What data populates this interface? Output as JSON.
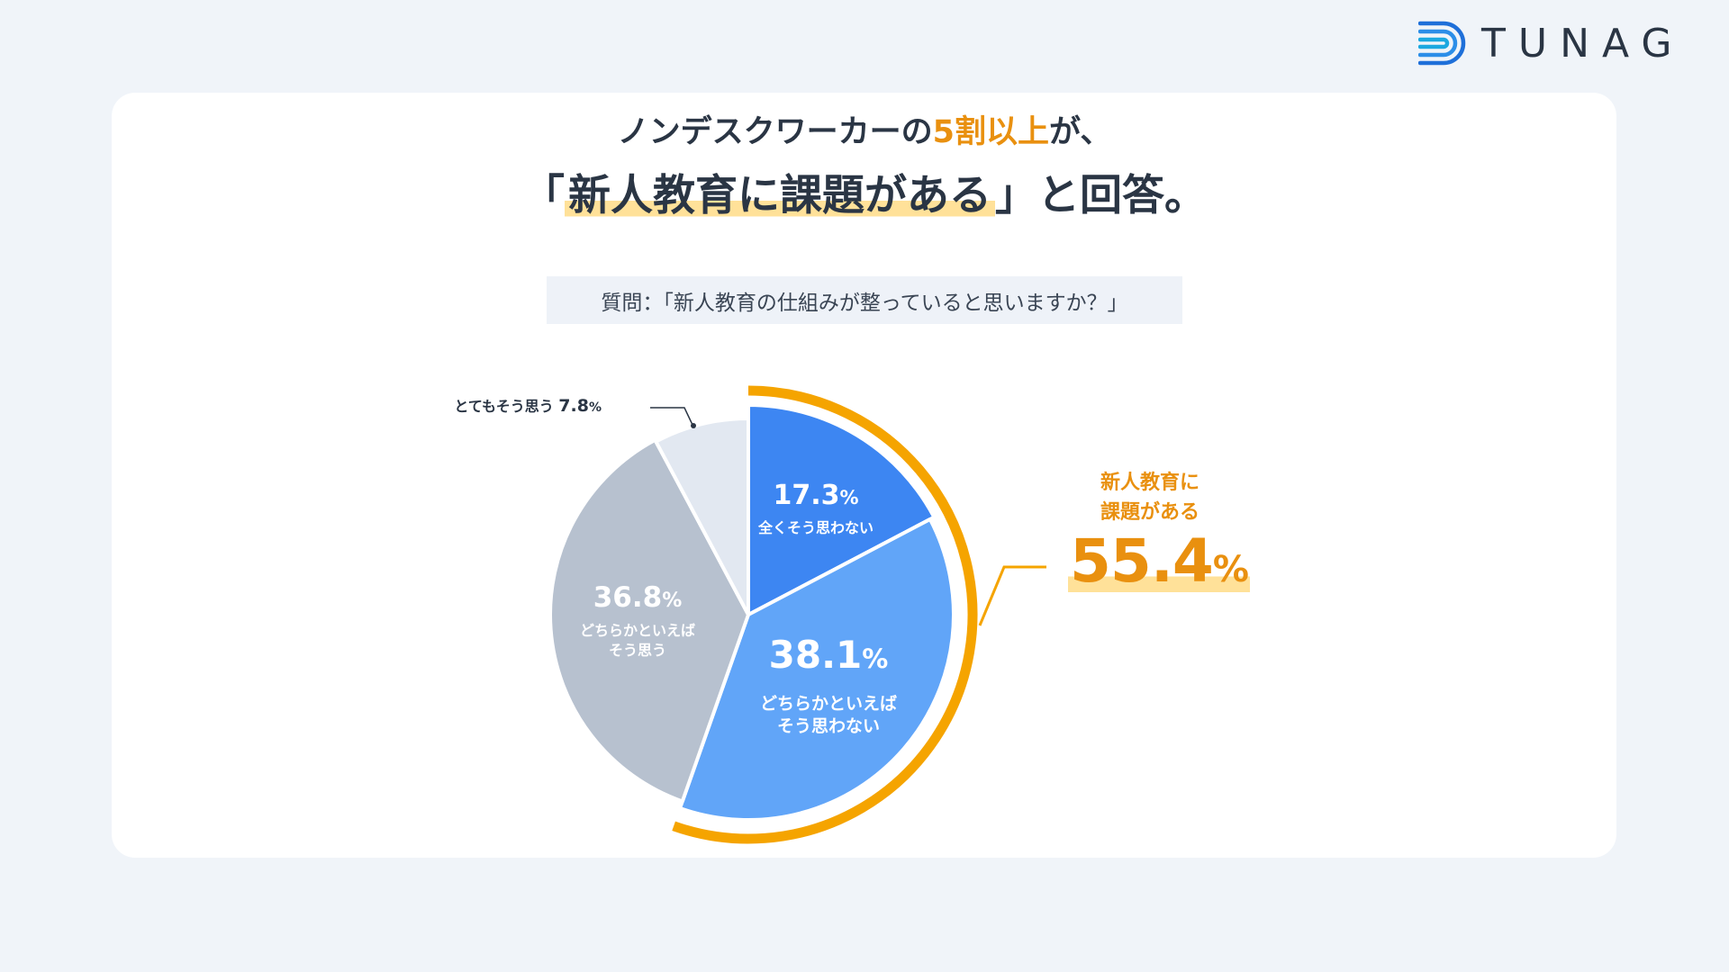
{
  "brand": {
    "name": "TUNAG"
  },
  "headline": {
    "line1_prefix": "ノンデスクワーカーの",
    "line1_highlight": "5割以上",
    "line1_suffix": "が、",
    "line2_open": "「",
    "line2_marked": "新人教育に課題がある",
    "line2_rest": "」と回答。"
  },
  "question": "質問：「新人教育の仕組みが整っていると思いますか？」",
  "callout": {
    "label_line1": "新人教育に",
    "label_line2": "課題がある",
    "value": "55.4",
    "unit": "%"
  },
  "colors": {
    "orange": "#f5a400",
    "blue_dark": "#3d86f2",
    "blue_light": "#61a5f8",
    "gray_dark": "#b7c1cf",
    "gray_light": "#e2e8f1"
  },
  "chart_data": {
    "type": "pie",
    "start": "12 o'clock, clockwise",
    "slices": [
      {
        "label_lines": [
          "全くそう思わない"
        ],
        "value": 17.3,
        "value_text": "17.3",
        "unit": "%",
        "color": "#3d86f2"
      },
      {
        "label_lines": [
          "どちらかといえば",
          "そう思わない"
        ],
        "value": 38.1,
        "value_text": "38.1",
        "unit": "%",
        "color": "#61a5f8"
      },
      {
        "label_lines": [
          "どちらかといえば",
          "そう思う"
        ],
        "value": 36.8,
        "value_text": "36.8",
        "unit": "%",
        "color": "#b7c1cf"
      },
      {
        "label_lines": [
          "とてもそう思う"
        ],
        "value": 7.8,
        "value_text": "7.8",
        "unit": "%",
        "color": "#e2e8f1"
      }
    ],
    "highlight": {
      "slices": [
        0,
        1
      ],
      "total": 55.4,
      "label": "新人教育に課題がある"
    }
  }
}
